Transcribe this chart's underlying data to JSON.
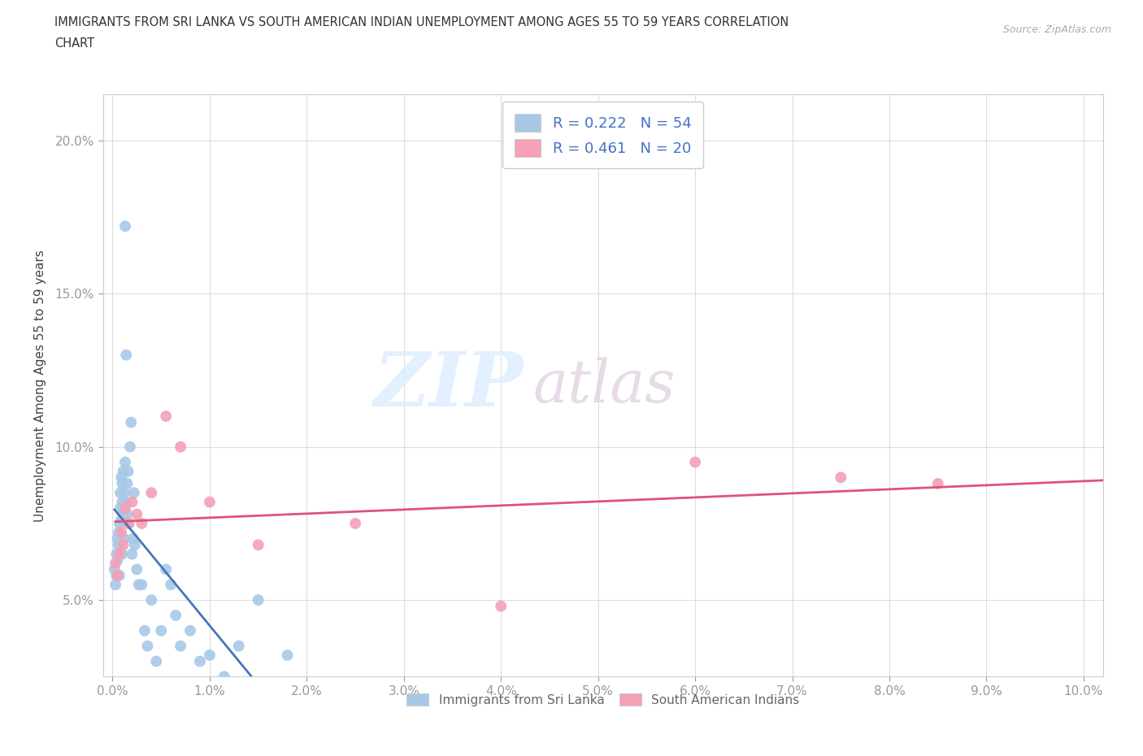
{
  "title_line1": "IMMIGRANTS FROM SRI LANKA VS SOUTH AMERICAN INDIAN UNEMPLOYMENT AMONG AGES 55 TO 59 YEARS CORRELATION",
  "title_line2": "CHART",
  "source": "Source: ZipAtlas.com",
  "ylabel": "Unemployment Among Ages 55 to 59 years",
  "xlim": [
    -0.001,
    0.102
  ],
  "ylim": [
    0.025,
    0.215
  ],
  "sri_lanka_color": "#a8c8e8",
  "south_american_color": "#f4a0b5",
  "sri_lanka_line_color": "#4477bb",
  "south_american_line_color": "#dd5577",
  "sri_lanka_R": 0.222,
  "sri_lanka_N": 54,
  "south_american_R": 0.461,
  "south_american_N": 20,
  "xtick_vals": [
    0.0,
    0.01,
    0.02,
    0.03,
    0.04,
    0.05,
    0.06,
    0.07,
    0.08,
    0.09,
    0.1
  ],
  "ytick_vals": [
    0.05,
    0.1,
    0.15,
    0.2
  ],
  "background_color": "#ffffff",
  "grid_color": "#dddddd",
  "sri_lanka_x": [
    0.0002,
    0.0003,
    0.0004,
    0.0004,
    0.0005,
    0.0005,
    0.0006,
    0.0006,
    0.0007,
    0.0007,
    0.0008,
    0.0008,
    0.0009,
    0.0009,
    0.001,
    0.001,
    0.001,
    0.0011,
    0.0011,
    0.0012,
    0.0012,
    0.0013,
    0.0013,
    0.0014,
    0.0014,
    0.0015,
    0.0015,
    0.0016,
    0.0017,
    0.0018,
    0.0019,
    0.002,
    0.0021,
    0.0022,
    0.0023,
    0.0025,
    0.0027,
    0.003,
    0.0033,
    0.0036,
    0.004,
    0.0045,
    0.005,
    0.0055,
    0.006,
    0.0065,
    0.007,
    0.008,
    0.009,
    0.01,
    0.0115,
    0.013,
    0.015,
    0.018
  ],
  "sri_lanka_y": [
    0.06,
    0.055,
    0.065,
    0.058,
    0.07,
    0.063,
    0.068,
    0.072,
    0.075,
    0.058,
    0.08,
    0.085,
    0.09,
    0.076,
    0.082,
    0.065,
    0.088,
    0.092,
    0.078,
    0.07,
    0.085,
    0.095,
    0.172,
    0.13,
    0.082,
    0.078,
    0.088,
    0.092,
    0.075,
    0.1,
    0.108,
    0.065,
    0.07,
    0.085,
    0.068,
    0.06,
    0.055,
    0.055,
    0.04,
    0.035,
    0.05,
    0.03,
    0.04,
    0.06,
    0.055,
    0.045,
    0.035,
    0.04,
    0.03,
    0.032,
    0.025,
    0.035,
    0.05,
    0.032
  ],
  "south_american_x": [
    0.0003,
    0.0005,
    0.0007,
    0.0009,
    0.0011,
    0.0013,
    0.0016,
    0.002,
    0.0025,
    0.003,
    0.004,
    0.0055,
    0.007,
    0.01,
    0.015,
    0.025,
    0.04,
    0.06,
    0.075,
    0.085
  ],
  "south_american_y": [
    0.062,
    0.058,
    0.065,
    0.072,
    0.068,
    0.08,
    0.075,
    0.082,
    0.078,
    0.075,
    0.085,
    0.11,
    0.1,
    0.082,
    0.068,
    0.075,
    0.048,
    0.095,
    0.09,
    0.088
  ]
}
